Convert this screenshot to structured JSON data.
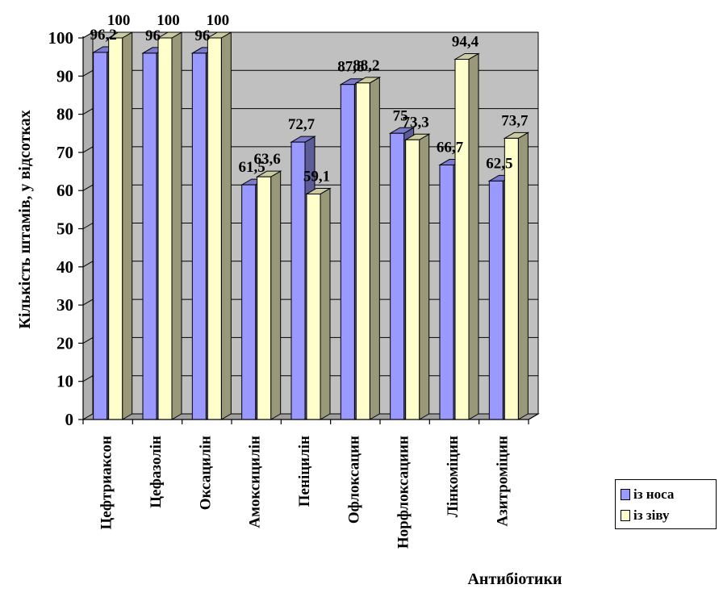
{
  "chart_data": {
    "type": "bar",
    "ylabel": "Кількість штамів, у відсотках",
    "xlabel": "Антибіотики",
    "ylim": [
      0,
      100
    ],
    "yticks": [
      "0",
      "10",
      "20",
      "30",
      "40",
      "50",
      "60",
      "70",
      "80",
      "90",
      "100"
    ],
    "grid": true,
    "legend_position": "bottom-right",
    "categories": [
      "Цефтриаксон",
      "Цефазолін",
      "Оксацилін",
      "Амоксицилін",
      "Пеніцилін",
      "Офлоксацин",
      "Норфлоксациин",
      "Лінкоміцин",
      "Азитроміцин"
    ],
    "series": [
      {
        "name": "із носа",
        "color": "#9999ff",
        "values": [
          96.2,
          96,
          96,
          61.5,
          72.7,
          87.8,
          75,
          66.7,
          62.5
        ],
        "labels": [
          "96,2",
          "96",
          "96",
          "61,5",
          "72,7",
          "87,8",
          "75",
          "66,7",
          "62,5"
        ]
      },
      {
        "name": "із зіву",
        "color": "#ffffcc",
        "values": [
          100,
          100,
          100,
          63.6,
          59.1,
          88.2,
          73.3,
          94.4,
          73.7
        ],
        "labels": [
          "100",
          "100",
          "100",
          "63,6",
          "59,1",
          "88,2",
          "73,3",
          "94,4",
          "73,7"
        ]
      }
    ]
  },
  "legend": {
    "items": [
      "із носа",
      "із зіву"
    ]
  }
}
